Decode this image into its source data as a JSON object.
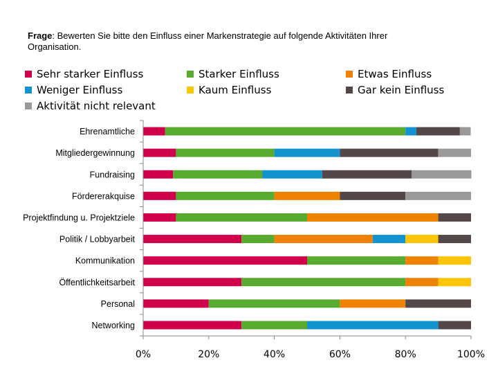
{
  "question": {
    "prefix": "Frage",
    "text": ": Bewerten Sie bitte den Einfluss einer Markenstrategie auf folgende Aktivitäten Ihrer Organisation."
  },
  "chart_data": {
    "type": "bar",
    "orientation": "horizontal",
    "stacked": "percent",
    "title": "",
    "xlabel": "",
    "ylabel": "",
    "xlim": [
      0,
      100
    ],
    "x_ticks": [
      "0%",
      "20%",
      "40%",
      "60%",
      "80%",
      "100%"
    ],
    "grid": false,
    "legend_position": "top",
    "categories": [
      "Ehrenamtliche",
      "Mitgliedergewinnung",
      "Fundraising",
      "Fördererakquise",
      "Projektfindung u. Projektziele",
      "Politik / Lobbyarbeit",
      "Kommunikation",
      "Öffentlichkeitsarbeit",
      "Personal",
      "Networking"
    ],
    "series": [
      {
        "name": "Sehr starker Einfluss",
        "color": "#d1004a",
        "values": [
          6.7,
          10,
          9.1,
          10,
          10,
          30,
          50,
          30,
          20,
          30
        ]
      },
      {
        "name": "Starker Einfluss",
        "color": "#58ab2e",
        "values": [
          73.3,
          30,
          27.3,
          30,
          40,
          10,
          30,
          50,
          40,
          20
        ]
      },
      {
        "name": "Etwas Einfluss",
        "color": "#ef8200",
        "values": [
          0,
          0,
          0,
          20,
          40,
          30,
          10,
          10,
          20,
          0
        ]
      },
      {
        "name": "Weniger Einfluss",
        "color": "#1193cf",
        "values": [
          3.3,
          20,
          18.2,
          0,
          0,
          10,
          0,
          0,
          0,
          40
        ]
      },
      {
        "name": "Kaum Einfluss",
        "color": "#fdc500",
        "values": [
          0,
          0,
          0,
          0,
          0,
          10,
          10,
          10,
          0,
          0
        ]
      },
      {
        "name": "Gar kein Einfluss",
        "color": "#544748",
        "values": [
          13.3,
          30,
          27.3,
          20,
          10,
          10,
          0,
          0,
          20,
          10
        ]
      },
      {
        "name": "Aktivität nicht relevant",
        "color": "#999999",
        "values": [
          3.3,
          10,
          18.2,
          20,
          0,
          0,
          0,
          0,
          0,
          0
        ]
      }
    ]
  }
}
